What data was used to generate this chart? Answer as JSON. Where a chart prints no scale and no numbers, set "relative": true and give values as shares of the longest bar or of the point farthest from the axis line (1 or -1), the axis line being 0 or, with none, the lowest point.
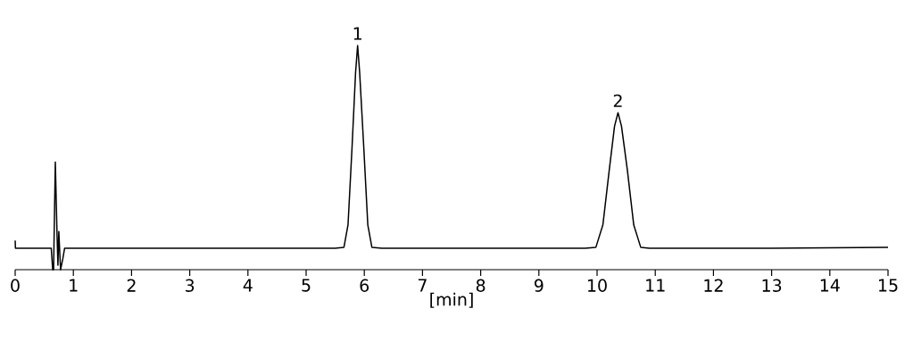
{
  "chart_data": {
    "type": "line",
    "relative": true,
    "xlabel": "[min]",
    "xlim": [
      0,
      15
    ],
    "xticks": [
      0,
      1,
      2,
      3,
      4,
      5,
      6,
      7,
      8,
      9,
      10,
      11,
      12,
      13,
      14,
      15
    ],
    "color": "#000000",
    "x": [
      0,
      0.005,
      0.62,
      0.645,
      0.66,
      0.69,
      0.72,
      0.735,
      0.75,
      0.78,
      0.82,
      0.85,
      3.0,
      5.5,
      5.65,
      5.72,
      5.79,
      5.85,
      5.885,
      5.92,
      5.99,
      6.06,
      6.13,
      6.3,
      8.0,
      9.8,
      9.98,
      10.1,
      10.21,
      10.3,
      10.36,
      10.42,
      10.52,
      10.63,
      10.75,
      10.9,
      13.0,
      15.0
    ],
    "values": [
      0.13,
      0.096,
      0.096,
      0.0,
      0.0,
      0.48,
      0.15,
      0.02,
      0.17,
      0.0,
      0.05,
      0.096,
      0.096,
      0.096,
      0.1,
      0.2,
      0.55,
      0.88,
      1.0,
      0.88,
      0.55,
      0.2,
      0.1,
      0.096,
      0.096,
      0.096,
      0.1,
      0.2,
      0.446,
      0.64,
      0.7,
      0.64,
      0.446,
      0.2,
      0.1,
      0.096,
      0.096,
      0.1
    ],
    "annotations": [
      {
        "text": "1",
        "x": 5.885,
        "y": 1.0
      },
      {
        "text": "2",
        "x": 10.36,
        "y": 0.7
      }
    ]
  }
}
